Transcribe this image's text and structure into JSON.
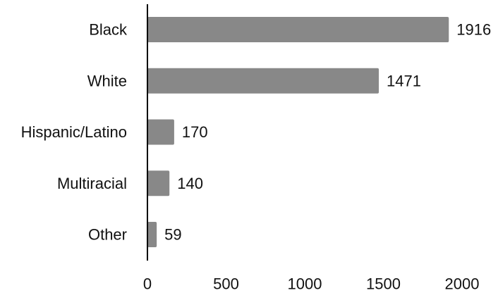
{
  "chart_data": {
    "type": "bar",
    "orientation": "horizontal",
    "categories": [
      "Black",
      "White",
      "Hispanic/Latino",
      "Multiracial",
      "Other"
    ],
    "values": [
      1916,
      1471,
      170,
      140,
      59
    ],
    "value_labels": [
      "1916",
      "1471",
      "170",
      "140",
      "59"
    ],
    "xticks": [
      0,
      500,
      1000,
      1500,
      2000
    ],
    "xtick_labels": [
      "0",
      "500",
      "1000",
      "1500",
      "2000"
    ],
    "xlim": [
      0,
      2000
    ],
    "title": "",
    "xlabel": "",
    "ylabel": "",
    "grid": false,
    "bar_color": "#888888"
  }
}
